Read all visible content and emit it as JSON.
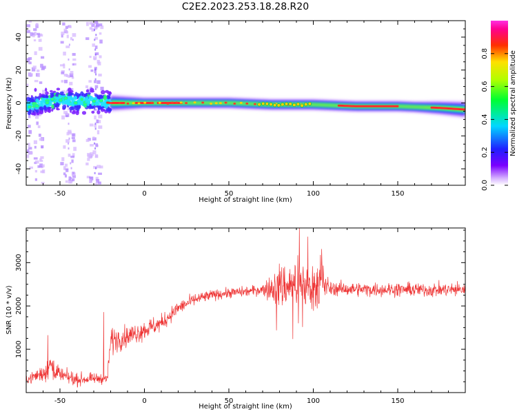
{
  "title": "C2E2.2023.253.18.28.R20",
  "chart_data": [
    {
      "type": "heatmap",
      "xlabel": "Height of straight line (km)",
      "ylabel": "Frequency (Hz)",
      "xlim": [
        -70,
        190
      ],
      "ylim": [
        -50,
        50
      ],
      "xticks": [
        -50,
        0,
        50,
        100,
        150
      ],
      "yticks": [
        -40,
        -20,
        0,
        20,
        40
      ],
      "colorbar": {
        "label": "Normalized spectral amplitude",
        "range": [
          0,
          1
        ],
        "ticks": [
          "0.0",
          "0.2",
          "0.4",
          "0.6",
          "0.8"
        ],
        "colormap": "rainbow (white → purple → blue → cyan → green → yellow → red → magenta)"
      },
      "ridge": [
        {
          "x": -68,
          "f": -2
        },
        {
          "x": -60,
          "f": 0
        },
        {
          "x": -50,
          "f": 2
        },
        {
          "x": -40,
          "f": 1
        },
        {
          "x": -30,
          "f": 1
        },
        {
          "x": -20,
          "f": 0
        },
        {
          "x": 0,
          "f": 0
        },
        {
          "x": 25,
          "f": 0
        },
        {
          "x": 50,
          "f": 0
        },
        {
          "x": 75,
          "f": -1
        },
        {
          "x": 100,
          "f": -1
        },
        {
          "x": 125,
          "f": -2
        },
        {
          "x": 150,
          "f": -2
        },
        {
          "x": 175,
          "f": -3
        },
        {
          "x": 190,
          "f": -4
        }
      ],
      "grid": false
    },
    {
      "type": "line",
      "xlabel": "Height of straight line (km)",
      "ylabel": "SNR (10 * v/v)",
      "xlim": [
        -70,
        190
      ],
      "ylim": [
        0,
        3800
      ],
      "xticks": [
        -50,
        0,
        50,
        100,
        150
      ],
      "yticks": [
        1000,
        2000,
        3000
      ],
      "color": "#ee3333",
      "series": [
        {
          "envelope_x": [
            -70,
            -60,
            -55,
            -50,
            -45,
            -40,
            -30,
            -22,
            -20,
            -10,
            0,
            10,
            20,
            30,
            40,
            50,
            60,
            70,
            80,
            90,
            100,
            105,
            108,
            110,
            130,
            150,
            170,
            190
          ],
          "envelope_y": [
            300,
            450,
            650,
            400,
            350,
            300,
            320,
            330,
            1200,
            1300,
            1450,
            1600,
            1950,
            2150,
            2250,
            2300,
            2330,
            2380,
            2450,
            2500,
            2450,
            2600,
            2450,
            2400,
            2380,
            2380,
            2370,
            2380
          ],
          "envelope_amp": [
            120,
            250,
            400,
            200,
            200,
            180,
            150,
            150,
            400,
            300,
            300,
            250,
            200,
            180,
            150,
            150,
            150,
            160,
            700,
            600,
            700,
            900,
            300,
            200,
            200,
            200,
            200,
            200
          ]
        }
      ],
      "grid": false
    }
  ]
}
